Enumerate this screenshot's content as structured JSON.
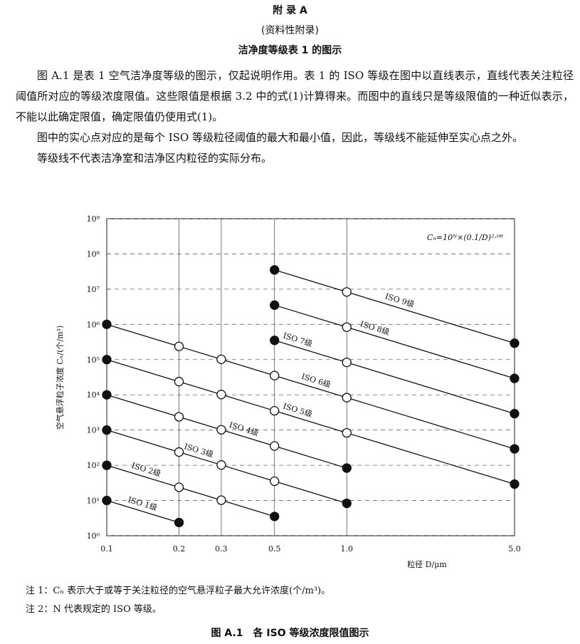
{
  "header": {
    "title": "附 录 A",
    "subtitle": "(资料性附录)",
    "heading": "洁净度等级表 1 的图示"
  },
  "body": {
    "paragraphs": [
      "图 A.1 是表 1 空气洁净度等级的图示，仅起说明作用。表 1 的 ISO 等级在图中以直线表示，直线代表关注粒径阈值所对应的等级浓度限值。这些限值是根据 3.2 中的式(1)计算得来。而图中的直线只是等级限值的一种近似表示，不能以此确定限值，确定限值仍使用式(1)。",
      "图中的实心点对应的是每个 ISO 等级粒径阈值的最大和最小值，因此，等级线不能延伸至实心点之外。",
      "等级线不代表洁净室和洁净区内粒径的实际分布。"
    ]
  },
  "chart_data": {
    "type": "line",
    "log_x": true,
    "log_y": true,
    "grid": true,
    "color": "#111111",
    "annotation": "Cₙ=10ᴺ×(0.1/D)²·⁰⁸",
    "x_label": "粒径 D/μm",
    "y_label": "空气悬浮粒子浓度 Cₙ/(个/m³)",
    "xlim": [
      0.1,
      5
    ],
    "ylim": [
      1,
      1000000000
    ],
    "xticks": [
      0.1,
      0.2,
      0.3,
      0.5,
      {
        "value": 1,
        "label": "1.0"
      },
      {
        "value": 5,
        "label": "5.0"
      }
    ],
    "yticks": [
      {
        "value": 1,
        "label": "10⁰"
      },
      {
        "value": 10,
        "label": "10¹"
      },
      {
        "value": 100,
        "label": "10²"
      },
      {
        "value": 1000,
        "label": "10³"
      },
      {
        "value": 10000,
        "label": "10⁴"
      },
      {
        "value": 100000,
        "label": "10⁵"
      },
      {
        "value": 1000000,
        "label": "10⁶"
      },
      {
        "value": 10000000,
        "label": "10⁷"
      },
      {
        "value": 100000000,
        "label": "10⁸"
      },
      {
        "value": 1000000000,
        "label": "10⁹"
      }
    ],
    "series": [
      {
        "name": "ISO 1级",
        "x": [
          0.1,
          0.2
        ],
        "values": [
          10,
          2.37
        ]
      },
      {
        "name": "ISO 2级",
        "x": [
          0.1,
          0.2,
          0.3,
          0.5
        ],
        "values": [
          100,
          23.7,
          10.2,
          3.52
        ]
      },
      {
        "name": "ISO 3级",
        "x": [
          0.1,
          0.2,
          0.3,
          0.5,
          1
        ],
        "values": [
          1000,
          237,
          102,
          35.2,
          8.32
        ]
      },
      {
        "name": "ISO 4级",
        "x": [
          0.1,
          0.2,
          0.3,
          0.5,
          1
        ],
        "values": [
          10000,
          2370,
          1020,
          352,
          83.2
        ]
      },
      {
        "name": "ISO 5级",
        "x": [
          0.1,
          0.2,
          0.3,
          0.5,
          1,
          5
        ],
        "values": [
          100000,
          23700,
          10200,
          3520,
          832,
          29.2
        ]
      },
      {
        "name": "ISO 6级",
        "x": [
          0.1,
          0.2,
          0.3,
          0.5,
          1,
          5
        ],
        "values": [
          1000000,
          237000,
          102000,
          35200,
          8320,
          292
        ]
      },
      {
        "name": "ISO 7级",
        "x": [
          0.5,
          1,
          5
        ],
        "values": [
          352000,
          83200,
          2920
        ]
      },
      {
        "name": "ISO 8级",
        "x": [
          0.5,
          1,
          5
        ],
        "values": [
          3520000,
          832000,
          29200
        ]
      },
      {
        "name": "ISO 9级",
        "x": [
          0.5,
          1,
          5
        ],
        "values": [
          35200000,
          8320000,
          292000
        ]
      }
    ]
  },
  "notes": [
    "注 1：Cₙ 表示大于或等于关注粒径的空气悬浮粒子最大允许浓度(个/m³)。",
    "注 2：N 代表规定的 ISO 等级。"
  ],
  "caption": "图 A.1　各 ISO 等级浓度限值图示"
}
